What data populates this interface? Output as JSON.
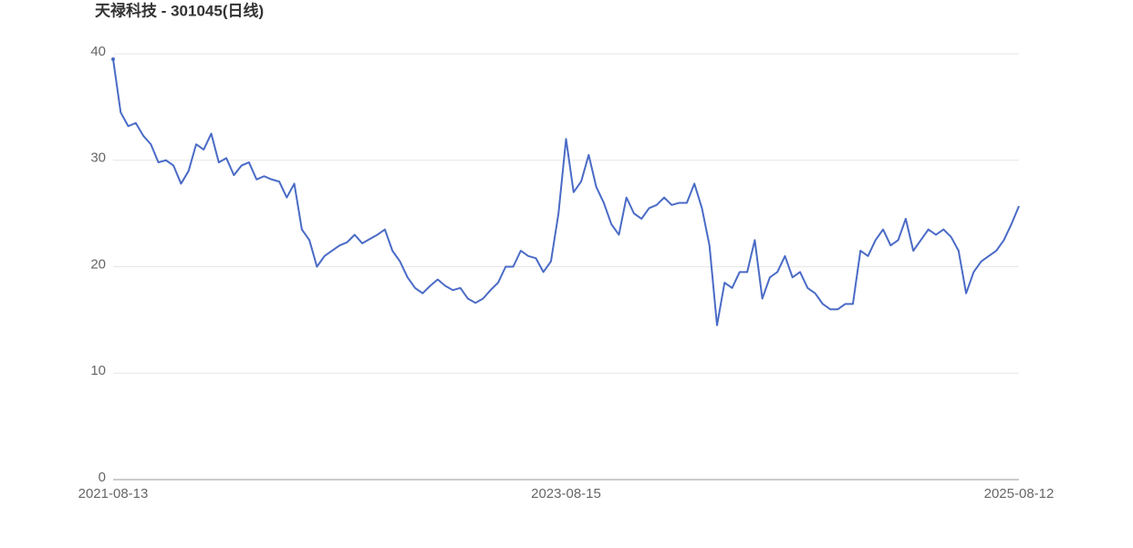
{
  "chart_data": {
    "type": "line",
    "title": "天禄科技 - 301045(日线)",
    "categories": [
      "2021-08-13",
      null,
      null,
      null,
      null,
      null,
      null,
      null,
      null,
      null,
      null,
      null,
      null,
      null,
      null,
      null,
      null,
      null,
      null,
      null,
      null,
      null,
      null,
      null,
      null,
      null,
      null,
      null,
      null,
      null,
      null,
      null,
      null,
      null,
      null,
      null,
      null,
      null,
      null,
      null,
      null,
      null,
      null,
      null,
      null,
      null,
      null,
      null,
      null,
      null,
      null,
      null,
      null,
      null,
      null,
      null,
      null,
      null,
      null,
      null,
      "2023-08-15",
      null,
      null,
      null,
      null,
      null,
      null,
      null,
      null,
      null,
      null,
      null,
      null,
      null,
      null,
      null,
      null,
      null,
      null,
      null,
      null,
      null,
      null,
      null,
      null,
      null,
      null,
      null,
      null,
      null,
      null,
      null,
      null,
      null,
      null,
      null,
      null,
      null,
      null,
      null,
      null,
      null,
      null,
      null,
      null,
      null,
      null,
      null,
      null,
      null,
      null,
      null,
      null,
      null,
      null,
      null,
      null,
      null,
      null,
      null,
      "2025-08-12"
    ],
    "series": [
      {
        "name": "301045",
        "color": "#4a6bc6",
        "values": [
          39.5,
          34.5,
          33.2,
          33.5,
          32.3,
          31.5,
          29.8,
          30,
          29.5,
          27.8,
          29,
          31.5,
          31,
          32.5,
          29.8,
          30.2,
          28.6,
          29.5,
          29.8,
          28.2,
          28.5,
          28.2,
          28,
          26.5,
          27.8,
          23.5,
          22.5,
          20,
          21,
          21.5,
          22,
          22.3,
          23,
          22.2,
          22.6,
          23,
          23.5,
          21.5,
          20.5,
          19,
          18,
          17.5,
          18.2,
          18.8,
          18.2,
          17.8,
          18,
          17,
          16.6,
          17,
          17.8,
          18.5,
          20,
          20,
          21.5,
          21,
          20.8,
          19.5,
          20.5,
          25,
          32,
          27,
          28,
          30.5,
          27.5,
          26,
          24,
          23,
          26.5,
          25,
          24.5,
          25.5,
          25.8,
          26.5,
          25.8,
          26,
          26,
          27.8,
          25.5,
          22,
          14.5,
          18.5,
          18,
          19.5,
          19.5,
          22.5,
          17,
          19,
          19.5,
          21,
          19,
          19.5,
          18,
          17.5,
          16.5,
          16,
          16,
          16.5,
          16.5,
          21.5,
          21,
          22.5,
          23.5,
          22,
          22.5,
          24.5,
          21.5,
          22.5,
          23.5,
          23,
          23.5,
          22.8,
          21.5,
          17.5,
          19.5,
          20.5,
          21,
          21.5,
          22.5,
          24,
          25.7
        ]
      }
    ],
    "ylim": [
      0,
      40
    ],
    "yticks": [
      0,
      10,
      20,
      30,
      40
    ],
    "grid": true
  }
}
